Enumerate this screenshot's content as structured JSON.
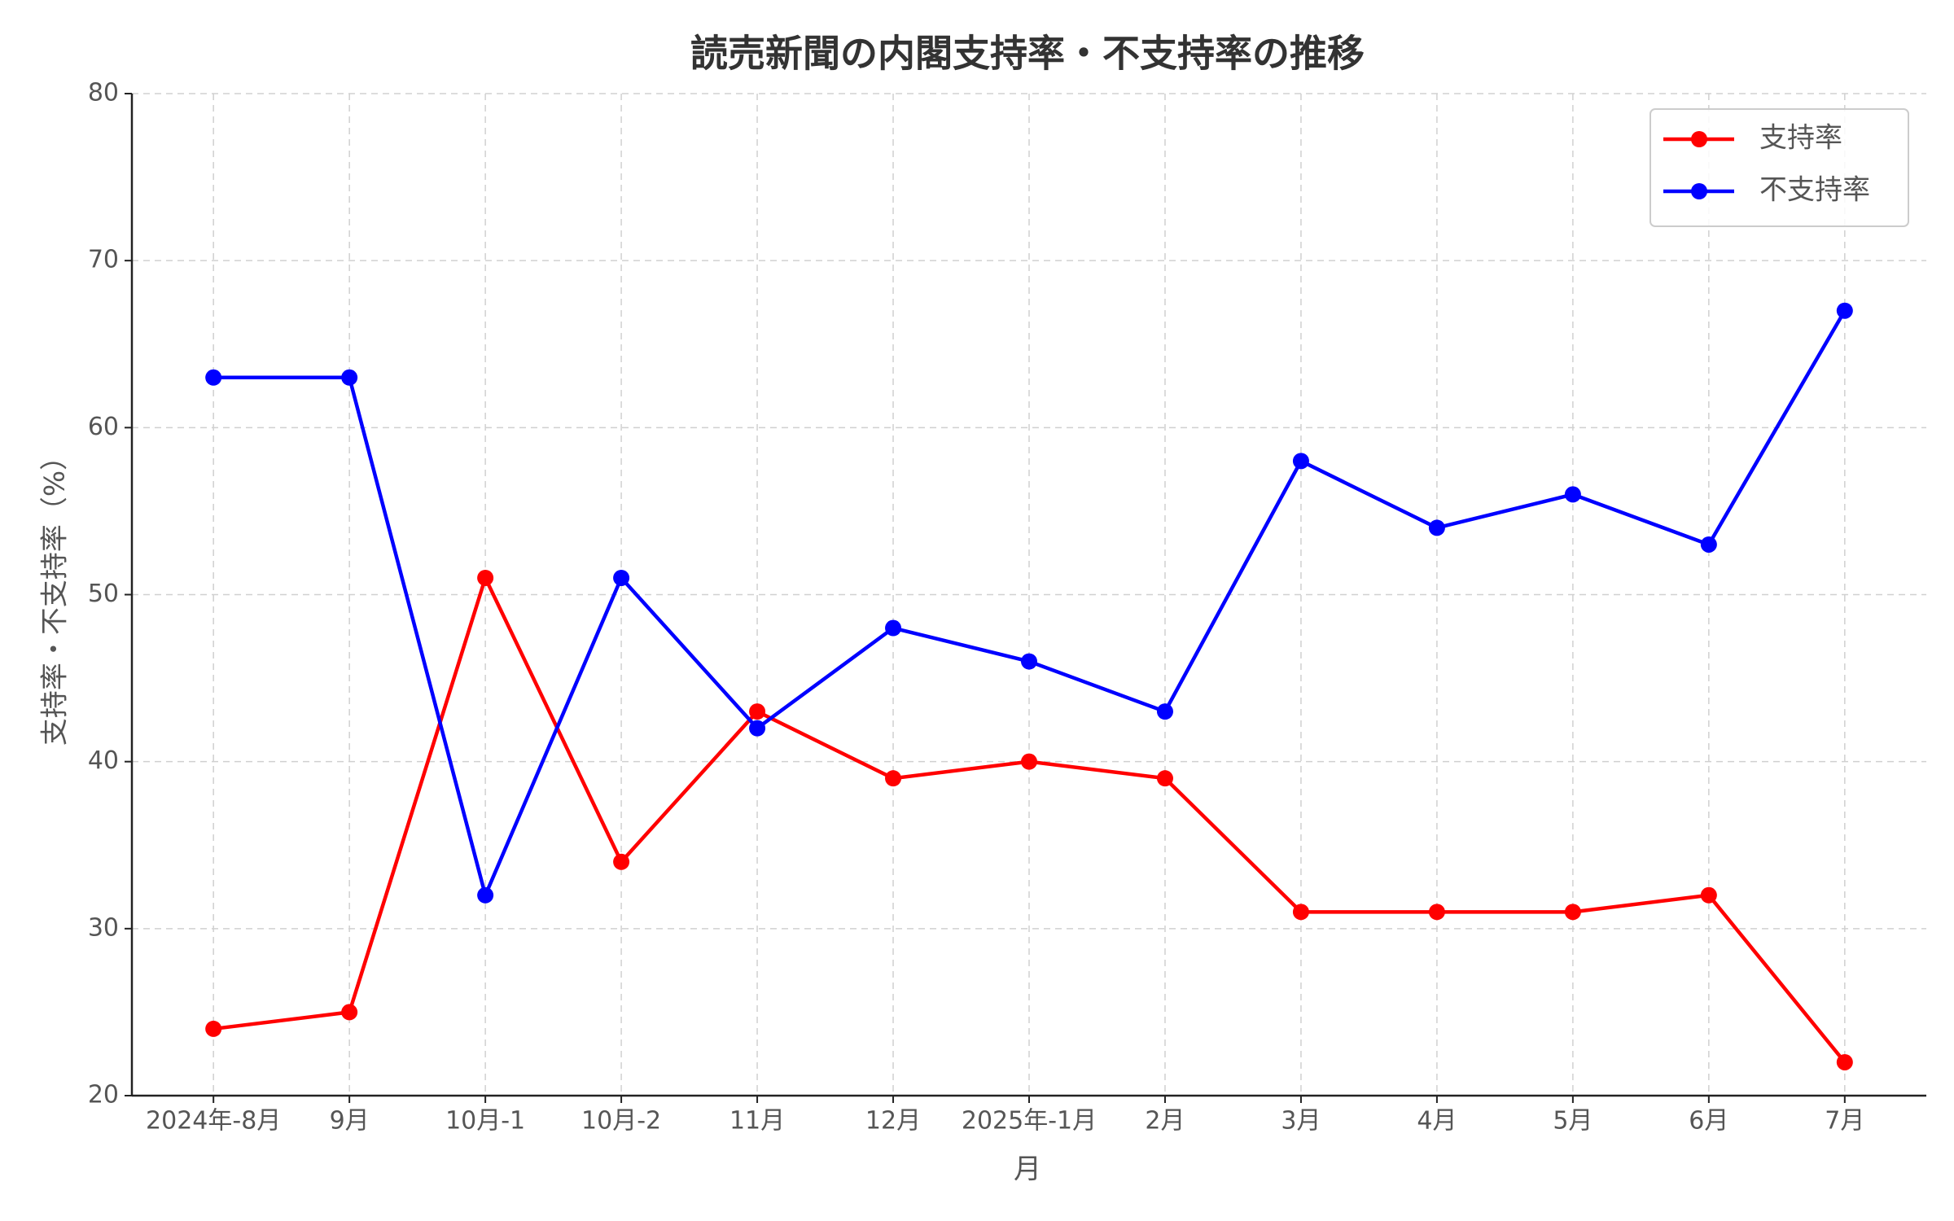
{
  "chart_data": {
    "type": "line",
    "title": "読売新聞の内閣支持率・不支持率の推移",
    "x_label": "月",
    "y_label": "支持率・不支持率（%）",
    "categories": [
      "2024年-8月",
      "9月",
      "10月-1",
      "10月-2",
      "11月",
      "12月",
      "2025年-1月",
      "2月",
      "3月",
      "4月",
      "5月",
      "6月",
      "7月"
    ],
    "series": [
      {
        "name": "支持率",
        "color": "#ff0000",
        "values": [
          24,
          25,
          51,
          34,
          43,
          39,
          40,
          39,
          31,
          31,
          31,
          32,
          22
        ]
      },
      {
        "name": "不支持率",
        "color": "#0000ff",
        "values": [
          63,
          63,
          32,
          51,
          42,
          48,
          46,
          43,
          58,
          54,
          56,
          53,
          67
        ]
      }
    ],
    "ylim": [
      20,
      80
    ],
    "yticks": [
      20,
      30,
      40,
      50,
      60,
      70,
      80
    ],
    "grid": true,
    "legend": "upper right"
  }
}
